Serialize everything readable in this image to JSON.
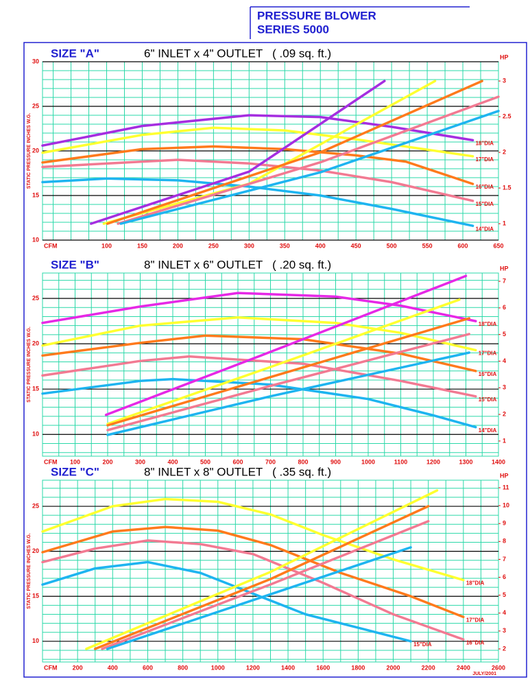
{
  "header": {
    "line1": "PRESSURE BLOWER",
    "line2": "SERIES 5000"
  },
  "footer": "JULY/2001",
  "chart_data": [
    {
      "type": "line",
      "title": "SIZE \"A\"",
      "subtitle": "6\" INLET x 4\" OUTLET   ( .09 sq. ft.)",
      "ylabel": "STATIC PRESSURE INCHES W.G.",
      "xlabel": "CFM",
      "y2label": "HP",
      "xlim": [
        10,
        650
      ],
      "xticks": [
        100,
        150,
        200,
        250,
        300,
        350,
        400,
        450,
        500,
        550,
        600,
        650
      ],
      "ylim": [
        10,
        30
      ],
      "yticks": [
        10,
        15,
        20,
        25,
        30
      ],
      "y2lim": [
        0.77,
        3.27
      ],
      "y2ticks": [
        1,
        1.5,
        2,
        2.5,
        3
      ],
      "grid": true,
      "series": [
        {
          "name": "18\"DIA",
          "color": "#a52ee0",
          "x": [
            10,
            150,
            300,
            400,
            500,
            614
          ],
          "values": [
            20.6,
            22.8,
            24.0,
            23.8,
            22.7,
            21.2
          ]
        },
        {
          "name": "17\"DIA",
          "color": "#ffff30",
          "x": [
            10,
            150,
            250,
            350,
            450,
            614
          ],
          "values": [
            19.8,
            21.8,
            22.6,
            22.3,
            21.3,
            19.4
          ]
        },
        {
          "name": "16\"DIA",
          "color": "#ff7a1c",
          "x": [
            10,
            150,
            250,
            350,
            450,
            520,
            614
          ],
          "values": [
            18.7,
            20.2,
            20.5,
            20.2,
            19.5,
            18.8,
            16.3
          ]
        },
        {
          "name": "15\"DIA",
          "color": "#f27a92",
          "x": [
            10,
            150,
            200,
            300,
            400,
            500,
            614
          ],
          "values": [
            18.2,
            18.8,
            19.0,
            18.6,
            17.8,
            16.5,
            14.4
          ]
        },
        {
          "name": "14\"DIA",
          "color": "#1eb4f0",
          "x": [
            10,
            100,
            200,
            300,
            400,
            500,
            614
          ],
          "values": [
            16.5,
            16.9,
            16.7,
            16.0,
            15.0,
            13.5,
            11.6
          ]
        },
        {
          "color": "#a52ee0",
          "axis": "y2",
          "x": [
            78,
            300,
            490
          ],
          "values": [
            1.0,
            1.73,
            3.0
          ]
        },
        {
          "color": "#ffff30",
          "axis": "y2",
          "x": [
            96,
            300,
            561
          ],
          "values": [
            1.0,
            1.56,
            3.0
          ]
        },
        {
          "color": "#ff7a1c",
          "axis": "y2",
          "x": [
            101,
            400,
            627
          ],
          "values": [
            1.0,
            2.0,
            3.0
          ]
        },
        {
          "color": "#f27a92",
          "axis": "y2",
          "x": [
            116,
            400,
            650
          ],
          "values": [
            1.0,
            1.86,
            2.78
          ]
        },
        {
          "color": "#1eb4f0",
          "axis": "y2",
          "x": [
            120,
            400,
            650
          ],
          "values": [
            1.0,
            1.72,
            2.58
          ]
        }
      ]
    },
    {
      "type": "line",
      "title": "SIZE \"B\"",
      "subtitle": "8\" INLET x 6\" OUTLET   ( .20 sq. ft.)",
      "ylabel": "STATIC PRESSURE INCHES W.G.",
      "xlabel": "CFM",
      "y2label": "HP",
      "xlim": [
        0,
        1400
      ],
      "xticks": [
        100,
        200,
        300,
        400,
        500,
        600,
        700,
        800,
        900,
        1000,
        1100,
        1200,
        1300,
        1400
      ],
      "ylim": [
        7.6,
        27.8
      ],
      "yticks": [
        10,
        15,
        20,
        25
      ],
      "y2lim": [
        0.43,
        7.31
      ],
      "y2ticks": [
        1,
        2,
        3,
        4,
        5,
        6,
        7
      ],
      "grid": true,
      "series": [
        {
          "name": "18\"DIA",
          "color": "#e628e6",
          "x": [
            0,
            300,
            600,
            900,
            1100,
            1330
          ],
          "values": [
            22.3,
            24.1,
            25.6,
            25.2,
            24.2,
            22.5
          ]
        },
        {
          "name": "17\"DIA",
          "color": "#ffff30",
          "x": [
            0,
            300,
            600,
            900,
            1100,
            1330
          ],
          "values": [
            19.8,
            22.0,
            22.9,
            22.3,
            21.2,
            19.3
          ]
        },
        {
          "name": "16\"DIA",
          "color": "#ff7a1c",
          "x": [
            0,
            300,
            500,
            800,
            1100,
            1330
          ],
          "values": [
            18.7,
            20.1,
            20.9,
            20.5,
            18.9,
            17.0
          ]
        },
        {
          "name": "15\"DIA",
          "color": "#f27a92",
          "x": [
            0,
            300,
            450,
            800,
            1100,
            1330
          ],
          "values": [
            16.5,
            18.1,
            18.6,
            17.8,
            15.9,
            14.2
          ]
        },
        {
          "name": "14\"DIA",
          "color": "#1eb4f0",
          "x": [
            0,
            300,
            400,
            700,
            1000,
            1200,
            1330
          ],
          "values": [
            14.5,
            15.9,
            16.1,
            15.5,
            13.9,
            12.1,
            10.8
          ]
        },
        {
          "color": "#e628e6",
          "axis": "y2",
          "x": [
            195,
            700,
            1300
          ],
          "values": [
            1.98,
            4.35,
            7.2
          ]
        },
        {
          "color": "#ffff30",
          "axis": "y2",
          "x": [
            200,
            700,
            1280
          ],
          "values": [
            1.64,
            3.78,
            6.31
          ]
        },
        {
          "color": "#ff7a1c",
          "axis": "y2",
          "x": [
            200,
            700,
            1310
          ],
          "values": [
            1.59,
            3.4,
            5.61
          ]
        },
        {
          "color": "#f27a92",
          "axis": "y2",
          "x": [
            200,
            700,
            1310
          ],
          "values": [
            1.41,
            3.07,
            5.02
          ]
        },
        {
          "color": "#1eb4f0",
          "axis": "y2",
          "x": [
            200,
            700,
            1310
          ],
          "values": [
            1.23,
            2.68,
            4.32
          ]
        }
      ]
    },
    {
      "type": "line",
      "title": "SIZE \"C\"",
      "subtitle": "8\" INLET x 8\" OUTLET   ( .35 sq. ft.)",
      "ylabel": "STATIC PRESSURE INCHES W.G.",
      "xlabel": "CFM",
      "y2label": "HP",
      "xlim": [
        0,
        2600
      ],
      "xticks": [
        200,
        400,
        600,
        800,
        1000,
        1200,
        1400,
        1600,
        1800,
        2000,
        2200,
        2400,
        2600
      ],
      "ylim": [
        7.7,
        27.9
      ],
      "yticks": [
        10,
        15,
        20,
        25
      ],
      "y2lim": [
        1.27,
        11.42
      ],
      "y2ticks": [
        2,
        3,
        4,
        5,
        6,
        7,
        8,
        9,
        10,
        11
      ],
      "grid": true,
      "series": [
        {
          "name": "18\"DIA",
          "color": "#ffff30",
          "x": [
            0,
            400,
            700,
            1000,
            1300,
            1600,
            2000,
            2400
          ],
          "values": [
            22.2,
            25.0,
            25.8,
            25.5,
            24.1,
            21.8,
            19.1,
            16.8
          ]
        },
        {
          "name": "17\"DIA",
          "color": "#ff7a1c",
          "x": [
            0,
            400,
            700,
            1000,
            1300,
            1700,
            2100,
            2400
          ],
          "values": [
            19.9,
            22.2,
            22.7,
            22.3,
            20.7,
            17.6,
            15.0,
            12.7
          ]
        },
        {
          "name": "16\"DIA",
          "color": "#f27a92",
          "x": [
            0,
            300,
            600,
            900,
            1200,
            1600,
            2000,
            2400
          ],
          "values": [
            18.8,
            20.3,
            21.2,
            20.8,
            19.7,
            16.5,
            13.0,
            10.2
          ]
        },
        {
          "name": "15\"DIA",
          "color": "#1eb4f0",
          "x": [
            0,
            300,
            600,
            900,
            1200,
            1500,
            1800,
            2100
          ],
          "values": [
            16.3,
            18.1,
            18.8,
            17.6,
            15.3,
            13.0,
            11.5,
            10.0
          ]
        },
        {
          "color": "#ffff30",
          "axis": "y2",
          "x": [
            250,
            1300,
            2250
          ],
          "values": [
            2.0,
            6.3,
            10.85
          ]
        },
        {
          "color": "#ff7a1c",
          "axis": "y2",
          "x": [
            300,
            1300,
            2200
          ],
          "values": [
            2.0,
            5.9,
            9.97
          ]
        },
        {
          "color": "#f27a92",
          "axis": "y2",
          "x": [
            340,
            1300,
            2200
          ],
          "values": [
            2.0,
            5.6,
            9.13
          ]
        },
        {
          "color": "#1eb4f0",
          "axis": "y2",
          "x": [
            370,
            1300,
            2100
          ],
          "values": [
            2.0,
            5.05,
            7.67
          ]
        }
      ]
    }
  ]
}
